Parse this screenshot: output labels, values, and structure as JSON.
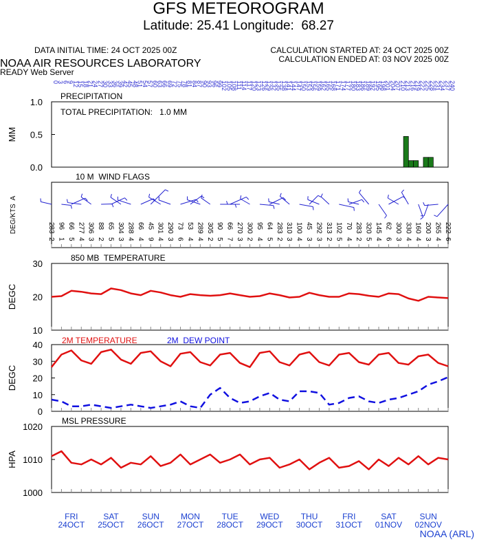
{
  "header": {
    "title": "GFS METEOROGRAM",
    "location": "Latitude: 25.41 Longitude:  68.27",
    "initial_time": "DATA INITIAL TIME: 24 OCT 2025 00Z",
    "calc_started": "CALCULATION STARTED AT: 24 OCT 2025 00Z",
    "calc_ended": "CALCULATION ENDED AT: 03 NOV 2025 00Z",
    "lab": "NOAA AIR RESOURCES LABORATORY",
    "server": "READY Web Server",
    "credit": "NOAA (ARL)"
  },
  "top_hours": [
    0,
    3,
    6,
    9,
    12,
    15,
    18,
    21,
    24,
    27,
    30,
    33,
    36,
    39,
    42,
    45,
    48,
    51,
    54,
    57,
    60,
    63,
    66,
    69,
    72,
    75,
    78,
    81,
    84,
    87,
    90,
    93,
    96,
    99,
    102,
    105,
    108,
    111,
    114,
    117,
    120,
    123,
    126,
    129,
    132,
    135,
    138,
    141,
    144,
    147,
    150,
    153,
    156,
    159,
    162,
    165,
    168,
    171,
    174,
    177,
    180,
    183,
    186,
    189,
    192,
    195,
    198,
    201,
    204,
    207,
    210,
    213,
    216,
    219,
    222,
    225,
    228,
    231,
    234,
    237,
    240
  ],
  "days": [
    {
      "day": "FRI",
      "date": "24OCT"
    },
    {
      "day": "SAT",
      "date": "25OCT"
    },
    {
      "day": "SUN",
      "date": "26OCT"
    },
    {
      "day": "MON",
      "date": "27OCT"
    },
    {
      "day": "TUE",
      "date": "28OCT"
    },
    {
      "day": "WED",
      "date": "29OCT"
    },
    {
      "day": "THU",
      "date": "30OCT"
    },
    {
      "day": "FRI",
      "date": "31OCT"
    },
    {
      "day": "SAT",
      "date": "01NOV"
    },
    {
      "day": "SUN",
      "date": "02NOV"
    }
  ],
  "chart_data": [
    {
      "type": "bar",
      "title": "PRECIPITATION",
      "annotation": "TOTAL PRECIPITATION:   1.0 MM",
      "y_label": "MM",
      "color": "#1a7a1a",
      "xlim": [
        0,
        240
      ],
      "ylim": [
        0,
        1
      ],
      "yticks": [
        {
          "value": 0,
          "label": "0.0"
        },
        {
          "value": 0.5,
          "label": "0.5"
        },
        {
          "value": 1,
          "label": "1.0"
        }
      ],
      "x": [
        213,
        216,
        219,
        225,
        228
      ],
      "values": [
        0.47,
        0.1,
        0.1,
        0.15,
        0.15
      ]
    },
    {
      "type": "barb",
      "title": "10 M  WIND FLAGS",
      "y_label": "DEG/KTS  A",
      "color": "#2020d0",
      "xlim": [
        0,
        240
      ],
      "x": [
        0,
        6,
        12,
        18,
        24,
        30,
        36,
        42,
        48,
        54,
        60,
        66,
        72,
        78,
        84,
        90,
        96,
        102,
        108,
        114,
        120,
        126,
        132,
        138,
        144,
        150,
        156,
        162,
        168,
        174,
        180,
        186,
        192,
        198,
        204,
        210,
        216,
        222,
        228,
        234,
        240
      ],
      "wind_dir": [
        283,
        96,
        66,
        277,
        306,
        88,
        65,
        304,
        288,
        66,
        45,
        301,
        290,
        73,
        53,
        289,
        305,
        90,
        66,
        270,
        300,
        95,
        64,
        283,
        310,
        100,
        45,
        292,
        313,
        102,
        70,
        283,
        320,
        145,
        62,
        300,
        330,
        160,
        200,
        265,
        222
      ],
      "wind_speed": [
        2,
        1,
        5,
        4,
        3,
        2,
        5,
        3,
        4,
        4,
        9,
        4,
        3,
        6,
        4,
        4,
        2,
        5,
        7,
        3,
        2,
        4,
        5,
        2,
        3,
        4,
        3,
        3,
        2,
        5,
        4,
        2,
        5,
        4,
        6,
        3,
        4,
        4,
        3,
        4,
        6
      ]
    },
    {
      "type": "line",
      "title": "850 MB  TEMPERATURE",
      "y_label": "DEGC",
      "xlim": [
        0,
        240
      ],
      "ylim": [
        10,
        30
      ],
      "yticks": [
        10,
        20,
        30
      ],
      "x": [
        0,
        6,
        12,
        18,
        24,
        30,
        36,
        42,
        48,
        54,
        60,
        66,
        72,
        78,
        84,
        90,
        96,
        102,
        108,
        114,
        120,
        126,
        132,
        138,
        144,
        150,
        156,
        162,
        168,
        174,
        180,
        186,
        192,
        198,
        204,
        210,
        216,
        222,
        228,
        234,
        240
      ],
      "series": [
        {
          "color": "#e01010",
          "linestyle": "solid",
          "values": [
            20.0,
            20.2,
            21.8,
            21.5,
            21.0,
            20.8,
            22.5,
            22.0,
            21.0,
            20.5,
            21.8,
            21.3,
            20.5,
            20.0,
            20.8,
            20.5,
            20.3,
            20.5,
            21.0,
            20.5,
            20.0,
            20.2,
            21.0,
            20.5,
            19.8,
            20.0,
            21.2,
            20.5,
            20.0,
            20.0,
            21.0,
            20.8,
            20.3,
            20.0,
            21.0,
            20.8,
            19.5,
            18.8,
            20.0,
            19.8,
            19.6
          ]
        }
      ]
    },
    {
      "type": "line",
      "y_label": "DEGC",
      "xlim": [
        0,
        240
      ],
      "ylim": [
        0,
        40
      ],
      "yticks": [
        0,
        10,
        20,
        30,
        40
      ],
      "x": [
        0,
        6,
        12,
        18,
        24,
        30,
        36,
        42,
        48,
        54,
        60,
        66,
        72,
        78,
        84,
        90,
        96,
        102,
        108,
        114,
        120,
        126,
        132,
        138,
        144,
        150,
        156,
        162,
        168,
        174,
        180,
        186,
        192,
        198,
        204,
        210,
        216,
        222,
        228,
        234,
        240
      ],
      "series": [
        {
          "name": "2M TEMPERATURE",
          "color": "#e01010",
          "linestyle": "solid",
          "values": [
            26.5,
            34,
            36.5,
            30.5,
            28.5,
            35.5,
            37,
            31,
            28.5,
            35,
            36,
            30,
            27,
            34.5,
            35.5,
            29.5,
            27.5,
            34,
            35,
            29,
            26.5,
            35,
            36,
            29.5,
            27.5,
            34,
            35.5,
            29.5,
            27.5,
            34,
            35,
            29.5,
            28,
            34,
            35,
            29,
            28,
            33,
            34,
            29,
            27
          ]
        },
        {
          "name": "2M  DEW POINT",
          "color": "#1010e0",
          "linestyle": "dashed",
          "values": [
            7,
            6,
            3,
            3,
            4,
            3,
            2,
            3,
            4,
            3,
            2,
            3,
            4,
            6,
            3,
            2,
            10,
            14,
            8,
            5,
            6,
            9,
            11,
            7,
            6,
            12,
            12,
            11,
            4,
            5,
            8,
            9,
            6,
            5,
            7,
            8,
            10,
            12,
            16,
            18,
            20.5
          ]
        }
      ]
    },
    {
      "type": "line",
      "title": "MSL PRESSURE",
      "y_label": "HPA",
      "xlim": [
        0,
        240
      ],
      "ylim": [
        1000,
        1020
      ],
      "yticks": [
        1000,
        1010,
        1020
      ],
      "x": [
        0,
        6,
        12,
        18,
        24,
        30,
        36,
        42,
        48,
        54,
        60,
        66,
        72,
        78,
        84,
        90,
        96,
        102,
        108,
        114,
        120,
        126,
        132,
        138,
        144,
        150,
        156,
        162,
        168,
        174,
        180,
        186,
        192,
        198,
        204,
        210,
        216,
        222,
        228,
        234,
        240
      ],
      "series": [
        {
          "color": "#e01010",
          "linestyle": "solid",
          "values": [
            1011,
            1012.5,
            1009,
            1008.5,
            1010,
            1008.5,
            1010.5,
            1007.5,
            1009,
            1008.5,
            1011,
            1008,
            1009,
            1011.5,
            1008.5,
            1010,
            1011.5,
            1009,
            1010,
            1011.5,
            1008.5,
            1010,
            1010.5,
            1007.5,
            1008.5,
            1010,
            1007,
            1009,
            1010.5,
            1007.5,
            1008,
            1009.5,
            1007,
            1010,
            1008,
            1010.5,
            1008.5,
            1011,
            1008.5,
            1010.5,
            1010
          ]
        }
      ]
    }
  ]
}
